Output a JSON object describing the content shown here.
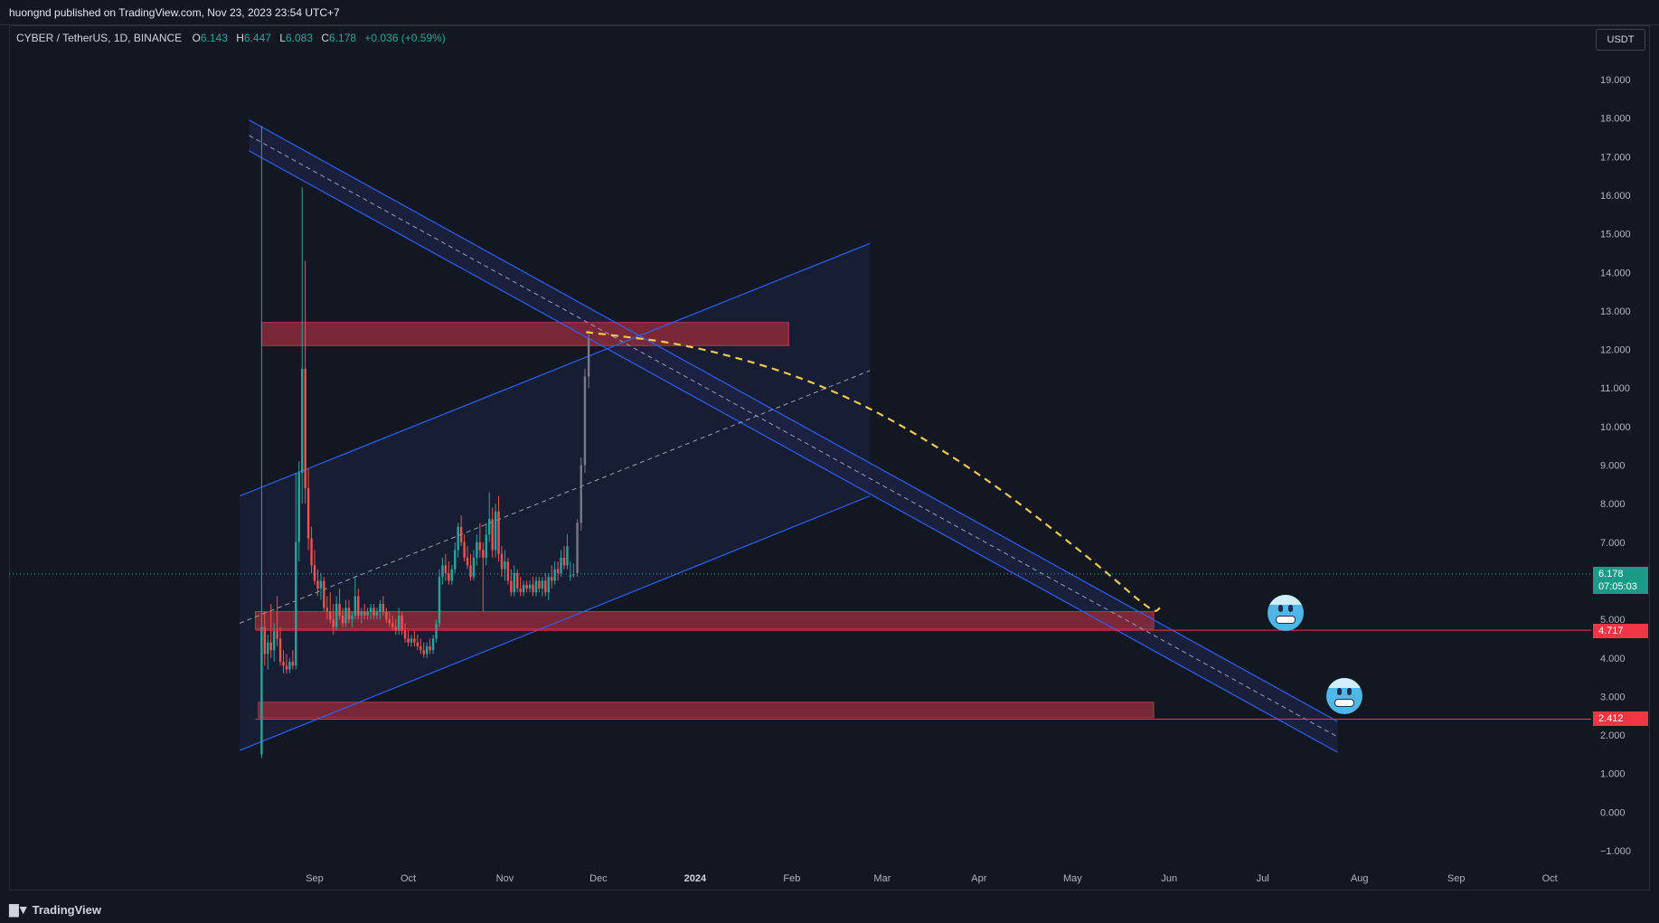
{
  "publish": {
    "text": "huongnd published on TradingView.com, Nov 23, 2023 23:54 UTC+7"
  },
  "legend": {
    "symbol": "CYBER / TetherUS, 1D, BINANCE",
    "open_label": "O",
    "open": "6.143",
    "high_label": "H",
    "high": "6.447",
    "low_label": "L",
    "low": "6.083",
    "close_label": "C",
    "close": "6.178",
    "change": "+0.036 (+0.59%)"
  },
  "currency": "USDT",
  "price_axis": [
    "19.000",
    "18.000",
    "17.000",
    "16.000",
    "15.000",
    "14.000",
    "13.000",
    "12.000",
    "11.000",
    "10.000",
    "9.000",
    "8.000",
    "7.000",
    "5.000",
    "4.000",
    "3.000",
    "2.000",
    "1.000",
    "0.000",
    "−1.000"
  ],
  "time_axis": [
    "Sep",
    "Oct",
    "Nov",
    "Dec",
    "2024",
    "Feb",
    "Mar",
    "Apr",
    "May",
    "Jun",
    "Jul",
    "Aug",
    "Sep",
    "Oct"
  ],
  "tags": {
    "current_price": "6.178",
    "countdown": "07:05:03",
    "level_1": "4.717",
    "level_2": "2.412"
  },
  "footer": {
    "brand": "TradingView"
  },
  "colors": {
    "background": "#131722",
    "bull": "#26a69a",
    "bear": "#ef5350",
    "projection": "#787b86",
    "channel": "#2962ff",
    "zone": "#8c2a3a",
    "path": "#f2c94c"
  },
  "chart_data": {
    "type": "candlestick",
    "symbol": "CYBER / TetherUS",
    "interval": "1D",
    "exchange": "BINANCE",
    "ylim": [
      -1.5,
      20.5
    ],
    "current_price": 6.178,
    "candles": [
      {
        "date": "2023-08-15",
        "o": 1.5,
        "h": 17.8,
        "l": 1.4,
        "c": 4.8
      },
      {
        "date": "2023-08-16",
        "o": 4.8,
        "h": 5.2,
        "l": 3.8,
        "c": 4.1
      },
      {
        "date": "2023-08-17",
        "o": 4.1,
        "h": 4.6,
        "l": 3.7,
        "c": 4.4
      },
      {
        "date": "2023-08-18",
        "o": 4.4,
        "h": 5.4,
        "l": 4.0,
        "c": 4.2
      },
      {
        "date": "2023-08-19",
        "o": 4.2,
        "h": 4.9,
        "l": 3.9,
        "c": 4.7
      },
      {
        "date": "2023-08-20",
        "o": 4.7,
        "h": 5.6,
        "l": 4.3,
        "c": 4.5
      },
      {
        "date": "2023-08-21",
        "o": 4.5,
        "h": 4.8,
        "l": 3.8,
        "c": 3.9
      },
      {
        "date": "2023-08-22",
        "o": 3.9,
        "h": 4.2,
        "l": 3.6,
        "c": 3.8
      },
      {
        "date": "2023-08-23",
        "o": 3.8,
        "h": 4.1,
        "l": 3.6,
        "c": 3.7
      },
      {
        "date": "2023-08-24",
        "o": 3.7,
        "h": 4.0,
        "l": 3.6,
        "c": 3.9
      },
      {
        "date": "2023-08-25",
        "o": 3.9,
        "h": 4.2,
        "l": 3.7,
        "c": 3.8
      },
      {
        "date": "2023-08-26",
        "o": 3.8,
        "h": 8.8,
        "l": 3.7,
        "c": 7.0
      },
      {
        "date": "2023-08-27",
        "o": 7.0,
        "h": 9.1,
        "l": 6.5,
        "c": 8.8
      },
      {
        "date": "2023-08-28",
        "o": 8.8,
        "h": 16.2,
        "l": 8.0,
        "c": 11.5
      },
      {
        "date": "2023-08-29",
        "o": 11.5,
        "h": 14.3,
        "l": 8.0,
        "c": 8.4
      },
      {
        "date": "2023-08-30",
        "o": 8.4,
        "h": 8.9,
        "l": 6.8,
        "c": 7.1
      },
      {
        "date": "2023-08-31",
        "o": 7.1,
        "h": 7.4,
        "l": 6.2,
        "c": 6.4
      },
      {
        "date": "2023-09-01",
        "o": 6.4,
        "h": 6.8,
        "l": 5.9,
        "c": 6.0
      },
      {
        "date": "2023-09-02",
        "o": 6.0,
        "h": 6.3,
        "l": 5.6,
        "c": 5.8
      },
      {
        "date": "2023-09-03",
        "o": 5.8,
        "h": 6.2,
        "l": 5.5,
        "c": 6.0
      },
      {
        "date": "2023-09-04",
        "o": 6.0,
        "h": 6.1,
        "l": 5.2,
        "c": 5.3
      },
      {
        "date": "2023-09-05",
        "o": 5.3,
        "h": 5.6,
        "l": 5.0,
        "c": 5.2
      },
      {
        "date": "2023-09-06",
        "o": 5.2,
        "h": 5.7,
        "l": 4.9,
        "c": 5.0
      },
      {
        "date": "2023-09-07",
        "o": 5.0,
        "h": 5.4,
        "l": 4.6,
        "c": 4.8
      },
      {
        "date": "2023-09-08",
        "o": 4.8,
        "h": 5.6,
        "l": 4.7,
        "c": 5.4
      },
      {
        "date": "2023-09-09",
        "o": 5.4,
        "h": 5.8,
        "l": 5.0,
        "c": 5.1
      },
      {
        "date": "2023-09-10",
        "o": 5.1,
        "h": 5.3,
        "l": 4.8,
        "c": 4.9
      },
      {
        "date": "2023-09-11",
        "o": 4.9,
        "h": 5.5,
        "l": 4.8,
        "c": 5.3
      },
      {
        "date": "2023-09-12",
        "o": 5.3,
        "h": 5.5,
        "l": 4.9,
        "c": 5.0
      },
      {
        "date": "2023-09-13",
        "o": 5.0,
        "h": 5.2,
        "l": 4.8,
        "c": 5.1
      },
      {
        "date": "2023-09-14",
        "o": 5.1,
        "h": 6.1,
        "l": 5.0,
        "c": 5.6
      },
      {
        "date": "2023-09-15",
        "o": 5.6,
        "h": 5.8,
        "l": 5.0,
        "c": 5.1
      },
      {
        "date": "2023-09-16",
        "o": 5.1,
        "h": 5.3,
        "l": 4.9,
        "c": 5.2
      },
      {
        "date": "2023-09-17",
        "o": 5.2,
        "h": 5.4,
        "l": 5.0,
        "c": 5.1
      },
      {
        "date": "2023-09-18",
        "o": 5.1,
        "h": 5.3,
        "l": 5.0,
        "c": 5.2
      },
      {
        "date": "2023-09-19",
        "o": 5.2,
        "h": 5.4,
        "l": 5.0,
        "c": 5.3
      },
      {
        "date": "2023-09-20",
        "o": 5.3,
        "h": 5.4,
        "l": 5.0,
        "c": 5.1
      },
      {
        "date": "2023-09-21",
        "o": 5.1,
        "h": 5.3,
        "l": 5.0,
        "c": 5.2
      },
      {
        "date": "2023-09-22",
        "o": 5.2,
        "h": 5.5,
        "l": 5.0,
        "c": 5.4
      },
      {
        "date": "2023-09-23",
        "o": 5.4,
        "h": 5.6,
        "l": 5.1,
        "c": 5.2
      },
      {
        "date": "2023-09-24",
        "o": 5.2,
        "h": 5.3,
        "l": 4.9,
        "c": 5.0
      },
      {
        "date": "2023-09-25",
        "o": 5.0,
        "h": 5.2,
        "l": 4.8,
        "c": 4.9
      },
      {
        "date": "2023-09-26",
        "o": 4.9,
        "h": 5.1,
        "l": 4.7,
        "c": 4.8
      },
      {
        "date": "2023-09-27",
        "o": 4.8,
        "h": 5.0,
        "l": 4.6,
        "c": 4.7
      },
      {
        "date": "2023-09-28",
        "o": 4.7,
        "h": 5.3,
        "l": 4.6,
        "c": 5.1
      },
      {
        "date": "2023-09-29",
        "o": 5.1,
        "h": 5.2,
        "l": 4.6,
        "c": 4.7
      },
      {
        "date": "2023-09-30",
        "o": 4.7,
        "h": 4.9,
        "l": 4.4,
        "c": 4.5
      },
      {
        "date": "2023-10-01",
        "o": 4.5,
        "h": 4.7,
        "l": 4.3,
        "c": 4.4
      },
      {
        "date": "2023-10-02",
        "o": 4.4,
        "h": 4.6,
        "l": 4.3,
        "c": 4.5
      },
      {
        "date": "2023-10-03",
        "o": 4.5,
        "h": 4.7,
        "l": 4.3,
        "c": 4.4
      },
      {
        "date": "2023-10-04",
        "o": 4.4,
        "h": 4.6,
        "l": 4.2,
        "c": 4.3
      },
      {
        "date": "2023-10-05",
        "o": 4.3,
        "h": 4.5,
        "l": 4.1,
        "c": 4.2
      },
      {
        "date": "2023-10-06",
        "o": 4.2,
        "h": 4.4,
        "l": 4.0,
        "c": 4.1
      },
      {
        "date": "2023-10-07",
        "o": 4.1,
        "h": 4.4,
        "l": 4.0,
        "c": 4.3
      },
      {
        "date": "2023-10-08",
        "o": 4.3,
        "h": 4.5,
        "l": 4.1,
        "c": 4.2
      },
      {
        "date": "2023-10-09",
        "o": 4.2,
        "h": 4.6,
        "l": 4.1,
        "c": 4.5
      },
      {
        "date": "2023-10-10",
        "o": 4.5,
        "h": 5.0,
        "l": 4.4,
        "c": 4.9
      },
      {
        "date": "2023-10-11",
        "o": 4.9,
        "h": 6.3,
        "l": 4.8,
        "c": 6.1
      },
      {
        "date": "2023-10-12",
        "o": 6.1,
        "h": 6.6,
        "l": 5.9,
        "c": 6.4
      },
      {
        "date": "2023-10-13",
        "o": 6.4,
        "h": 6.7,
        "l": 6.0,
        "c": 6.2
      },
      {
        "date": "2023-10-14",
        "o": 6.2,
        "h": 6.5,
        "l": 5.9,
        "c": 6.0
      },
      {
        "date": "2023-10-15",
        "o": 6.0,
        "h": 6.4,
        "l": 5.9,
        "c": 6.3
      },
      {
        "date": "2023-10-16",
        "o": 6.3,
        "h": 7.0,
        "l": 6.2,
        "c": 6.8
      },
      {
        "date": "2023-10-17",
        "o": 6.8,
        "h": 7.5,
        "l": 6.6,
        "c": 7.4
      },
      {
        "date": "2023-10-18",
        "o": 7.4,
        "h": 7.7,
        "l": 6.9,
        "c": 7.0
      },
      {
        "date": "2023-10-19",
        "o": 7.0,
        "h": 7.2,
        "l": 6.5,
        "c": 6.6
      },
      {
        "date": "2023-10-20",
        "o": 6.6,
        "h": 6.9,
        "l": 6.3,
        "c": 6.4
      },
      {
        "date": "2023-10-21",
        "o": 6.4,
        "h": 6.7,
        "l": 6.0,
        "c": 6.1
      },
      {
        "date": "2023-10-22",
        "o": 6.1,
        "h": 6.8,
        "l": 6.0,
        "c": 6.6
      },
      {
        "date": "2023-10-23",
        "o": 6.6,
        "h": 7.2,
        "l": 6.4,
        "c": 7.0
      },
      {
        "date": "2023-10-24",
        "o": 7.0,
        "h": 7.5,
        "l": 6.6,
        "c": 6.8
      },
      {
        "date": "2023-10-25",
        "o": 6.8,
        "h": 7.0,
        "l": 5.2,
        "c": 6.6
      },
      {
        "date": "2023-10-26",
        "o": 6.6,
        "h": 7.5,
        "l": 6.4,
        "c": 7.2
      },
      {
        "date": "2023-10-27",
        "o": 7.2,
        "h": 8.3,
        "l": 7.0,
        "c": 7.6
      },
      {
        "date": "2023-10-28",
        "o": 7.6,
        "h": 7.9,
        "l": 6.6,
        "c": 6.8
      },
      {
        "date": "2023-10-29",
        "o": 6.8,
        "h": 8.0,
        "l": 6.6,
        "c": 7.8
      },
      {
        "date": "2023-10-30",
        "o": 7.8,
        "h": 8.2,
        "l": 6.5,
        "c": 6.7
      },
      {
        "date": "2023-10-31",
        "o": 6.7,
        "h": 6.9,
        "l": 6.1,
        "c": 6.3
      },
      {
        "date": "2023-11-01",
        "o": 6.3,
        "h": 6.8,
        "l": 6.0,
        "c": 6.5
      },
      {
        "date": "2023-11-02",
        "o": 6.5,
        "h": 6.6,
        "l": 5.9,
        "c": 6.0
      },
      {
        "date": "2023-11-03",
        "o": 6.0,
        "h": 6.3,
        "l": 5.6,
        "c": 5.7
      },
      {
        "date": "2023-11-04",
        "o": 5.7,
        "h": 6.4,
        "l": 5.6,
        "c": 6.2
      },
      {
        "date": "2023-11-05",
        "o": 6.2,
        "h": 6.3,
        "l": 5.7,
        "c": 5.8
      },
      {
        "date": "2023-11-06",
        "o": 5.8,
        "h": 6.1,
        "l": 5.6,
        "c": 5.7
      },
      {
        "date": "2023-11-07",
        "o": 5.7,
        "h": 6.0,
        "l": 5.6,
        "c": 5.9
      },
      {
        "date": "2023-11-08",
        "o": 5.9,
        "h": 6.0,
        "l": 5.7,
        "c": 5.8
      },
      {
        "date": "2023-11-09",
        "o": 5.8,
        "h": 6.0,
        "l": 5.7,
        "c": 5.9
      },
      {
        "date": "2023-11-10",
        "o": 5.9,
        "h": 6.1,
        "l": 5.6,
        "c": 5.7
      },
      {
        "date": "2023-11-11",
        "o": 5.7,
        "h": 6.1,
        "l": 5.6,
        "c": 6.0
      },
      {
        "date": "2023-11-12",
        "o": 6.0,
        "h": 6.1,
        "l": 5.7,
        "c": 5.8
      },
      {
        "date": "2023-11-13",
        "o": 5.8,
        "h": 6.1,
        "l": 5.6,
        "c": 6.0
      },
      {
        "date": "2023-11-14",
        "o": 6.0,
        "h": 6.2,
        "l": 5.6,
        "c": 5.7
      },
      {
        "date": "2023-11-15",
        "o": 5.7,
        "h": 6.2,
        "l": 5.5,
        "c": 6.1
      },
      {
        "date": "2023-11-16",
        "o": 6.1,
        "h": 6.4,
        "l": 5.8,
        "c": 6.0
      },
      {
        "date": "2023-11-17",
        "o": 6.0,
        "h": 6.5,
        "l": 5.9,
        "c": 6.3
      },
      {
        "date": "2023-11-18",
        "o": 6.3,
        "h": 6.5,
        "l": 6.0,
        "c": 6.2
      },
      {
        "date": "2023-11-19",
        "o": 6.2,
        "h": 6.8,
        "l": 6.1,
        "c": 6.6
      },
      {
        "date": "2023-11-20",
        "o": 6.6,
        "h": 6.9,
        "l": 6.3,
        "c": 6.4
      },
      {
        "date": "2023-11-21",
        "o": 6.4,
        "h": 7.2,
        "l": 6.3,
        "c": 6.9
      },
      {
        "date": "2023-11-22",
        "o": 6.1,
        "h": 6.5,
        "l": 6.0,
        "c": 6.14
      },
      {
        "date": "2023-11-23",
        "o": 6.143,
        "h": 6.447,
        "l": 6.083,
        "c": 6.178
      }
    ],
    "projection_candles": [
      {
        "o": 6.2,
        "h": 7.6,
        "l": 6.1,
        "c": 7.5
      },
      {
        "o": 7.5,
        "h": 9.2,
        "l": 7.3,
        "c": 9.0
      },
      {
        "o": 9.0,
        "h": 11.5,
        "l": 8.8,
        "c": 11.3
      },
      {
        "o": 11.3,
        "h": 12.5,
        "l": 11.0,
        "c": 12.3
      }
    ],
    "zones": [
      {
        "from": "2023-08-15",
        "to": "2024-01-31",
        "top": 12.7,
        "bottom": 12.1
      },
      {
        "from": "2023-08-13",
        "to": "2024-05-27",
        "top": 5.2,
        "bottom": 4.75
      },
      {
        "from": "2023-08-14",
        "to": "2024-05-27",
        "top": 2.85,
        "bottom": 2.45
      }
    ],
    "levels": [
      4.717,
      2.412
    ],
    "down_channel": {
      "upper": [
        [
          "2023-08-11",
          17.95
        ],
        [
          "2024-07-25",
          2.35
        ]
      ],
      "lower": [
        [
          "2023-08-11",
          17.15
        ],
        [
          "2024-07-25",
          1.55
        ]
      ],
      "mid": [
        [
          "2023-08-11",
          17.55
        ],
        [
          "2024-07-25",
          1.95
        ]
      ]
    },
    "up_channel": {
      "upper": [
        [
          "2023-08-08",
          8.2
        ],
        [
          "2024-02-26",
          14.75
        ]
      ],
      "lower": [
        [
          "2023-08-08",
          1.6
        ],
        [
          "2024-02-26",
          8.2
        ]
      ],
      "mid": [
        [
          "2023-08-08",
          4.9
        ],
        [
          "2024-02-26",
          11.45
        ]
      ],
      "box_right": "2024-02-26"
    },
    "forecast_path": [
      [
        "2023-11-27",
        12.45
      ],
      [
        "2024-01-02",
        12.1
      ],
      [
        "2024-02-15",
        11.0
      ],
      [
        "2024-03-29",
        9.0
      ],
      [
        "2024-05-08",
        6.5
      ],
      [
        "2024-05-27",
        5.15
      ],
      [
        "2024-05-29",
        5.3
      ]
    ]
  }
}
